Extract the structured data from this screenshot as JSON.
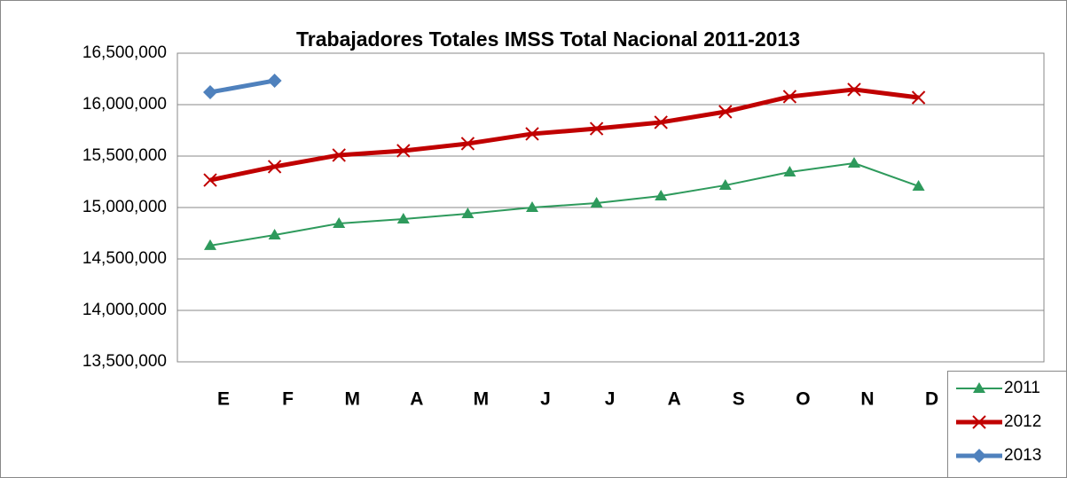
{
  "chart_data": {
    "type": "line",
    "title": "Trabajadores Totales IMSS Total Nacional 2011-2013",
    "categories": [
      "E",
      "F",
      "M",
      "A",
      "M",
      "J",
      "J",
      "A",
      "S",
      "O",
      "N",
      "D"
    ],
    "series": [
      {
        "name": "2011",
        "color": "#2e9a5c",
        "marker": "triangle",
        "values": [
          14630000,
          14733000,
          14845000,
          14888000,
          14940000,
          15000000,
          15043000,
          15112000,
          15216000,
          15345000,
          15431000,
          15207000
        ]
      },
      {
        "name": "2012",
        "color": "#c00000",
        "marker": "x",
        "values": [
          15267000,
          15397000,
          15509000,
          15552000,
          15621000,
          15716000,
          15767000,
          15828000,
          15931000,
          16078000,
          16147000,
          16069000
        ]
      },
      {
        "name": "2013",
        "color": "#4f81bd",
        "marker": "diamond",
        "values": [
          16121000,
          16233000,
          null,
          null,
          null,
          null,
          null,
          null,
          null,
          null,
          null,
          null
        ]
      }
    ],
    "ylim": [
      13500000,
      16500000
    ],
    "yticks": [
      {
        "value": 13500000,
        "label": "13,500,000"
      },
      {
        "value": 14000000,
        "label": "14,000,000"
      },
      {
        "value": 14500000,
        "label": "14,500,000"
      },
      {
        "value": 15000000,
        "label": "15,000,000"
      },
      {
        "value": 15500000,
        "label": "15,500,000"
      },
      {
        "value": 16000000,
        "label": "16,000,000"
      },
      {
        "value": 16500000,
        "label": "16,500,000"
      }
    ],
    "grid": true,
    "legend": "lower right"
  }
}
